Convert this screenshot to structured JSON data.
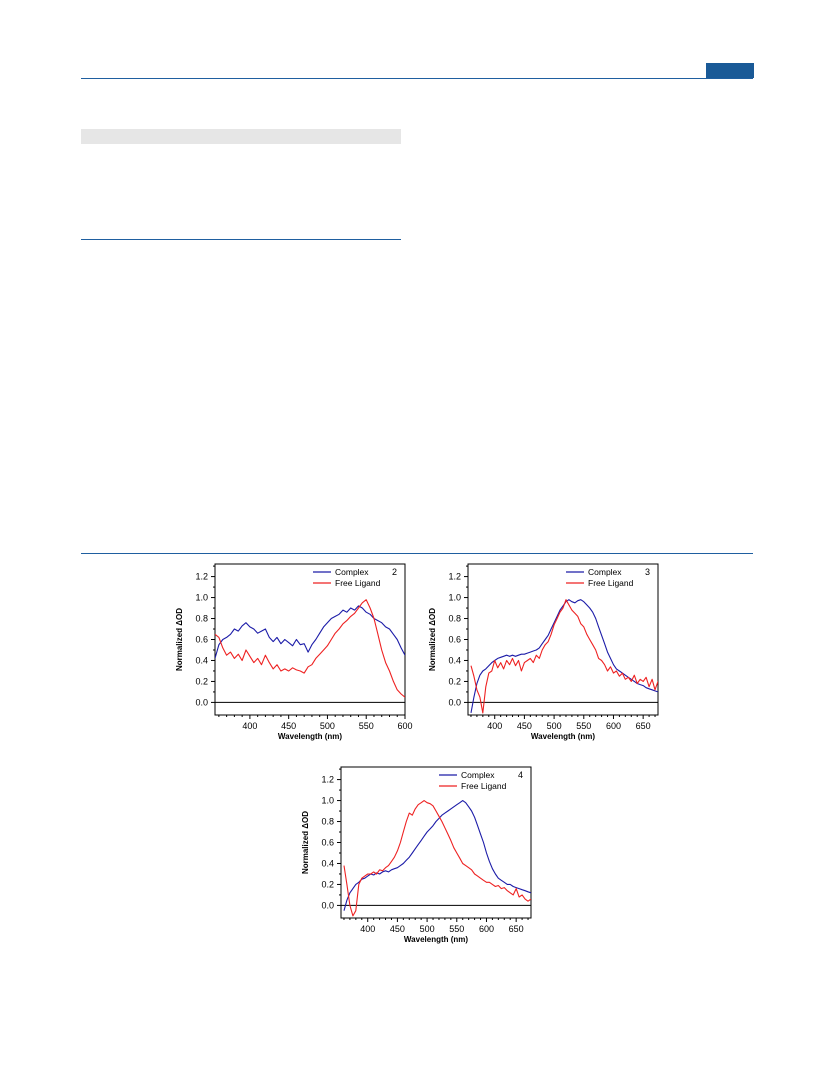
{
  "colors": {
    "header_rule": "#1f5fa0",
    "header_tab": "#1a5a97",
    "shaded_bar": "#e6e6e6",
    "complex": "#1c1ca8",
    "free_ligand": "#ee2222"
  },
  "chart_data": [
    {
      "type": "line",
      "panel_label": "2",
      "xlabel": "Wavelength (nm)",
      "ylabel": "Normalized ΔOD",
      "xlim": [
        355,
        600
      ],
      "ylim": [
        -0.12,
        1.32
      ],
      "xticks": [
        400,
        450,
        500,
        550,
        600
      ],
      "yticks": [
        0.0,
        0.2,
        0.4,
        0.6,
        0.8,
        1.0,
        1.2
      ],
      "zero_line": true,
      "legend_position": "top-right",
      "series": [
        {
          "name": "Complex",
          "color": "#1c1ca8",
          "x": [
            355,
            360,
            365,
            370,
            375,
            380,
            385,
            390,
            395,
            400,
            405,
            410,
            415,
            420,
            425,
            430,
            435,
            440,
            445,
            450,
            455,
            460,
            465,
            470,
            475,
            480,
            485,
            490,
            495,
            500,
            505,
            510,
            515,
            520,
            525,
            530,
            535,
            540,
            545,
            550,
            555,
            560,
            565,
            570,
            575,
            580,
            585,
            590,
            595,
            600
          ],
          "y": [
            0.42,
            0.55,
            0.6,
            0.62,
            0.65,
            0.7,
            0.68,
            0.73,
            0.76,
            0.72,
            0.7,
            0.66,
            0.68,
            0.7,
            0.62,
            0.58,
            0.62,
            0.56,
            0.6,
            0.57,
            0.54,
            0.6,
            0.55,
            0.56,
            0.48,
            0.55,
            0.6,
            0.66,
            0.72,
            0.76,
            0.8,
            0.82,
            0.84,
            0.88,
            0.86,
            0.9,
            0.88,
            0.92,
            0.9,
            0.86,
            0.84,
            0.8,
            0.78,
            0.76,
            0.72,
            0.7,
            0.65,
            0.6,
            0.52,
            0.45
          ]
        },
        {
          "name": "Free Ligand",
          "color": "#ee2222",
          "x": [
            355,
            360,
            365,
            370,
            375,
            380,
            385,
            390,
            395,
            400,
            405,
            410,
            415,
            420,
            425,
            430,
            435,
            440,
            445,
            450,
            455,
            460,
            465,
            470,
            475,
            480,
            485,
            490,
            495,
            500,
            505,
            510,
            515,
            520,
            525,
            530,
            535,
            540,
            545,
            550,
            555,
            560,
            565,
            570,
            575,
            580,
            585,
            590,
            595,
            600
          ],
          "y": [
            0.65,
            0.62,
            0.52,
            0.45,
            0.48,
            0.42,
            0.46,
            0.4,
            0.5,
            0.44,
            0.38,
            0.42,
            0.36,
            0.45,
            0.38,
            0.32,
            0.36,
            0.3,
            0.32,
            0.3,
            0.33,
            0.31,
            0.3,
            0.28,
            0.34,
            0.36,
            0.42,
            0.46,
            0.5,
            0.54,
            0.6,
            0.66,
            0.7,
            0.75,
            0.78,
            0.82,
            0.85,
            0.9,
            0.95,
            0.98,
            0.9,
            0.8,
            0.65,
            0.5,
            0.38,
            0.3,
            0.2,
            0.12,
            0.08,
            0.05
          ]
        }
      ]
    },
    {
      "type": "line",
      "panel_label": "3",
      "xlabel": "Wavelength (nm)",
      "ylabel": "Normalized ΔOD",
      "xlim": [
        355,
        675
      ],
      "ylim": [
        -0.12,
        1.32
      ],
      "xticks": [
        400,
        450,
        500,
        550,
        600,
        650
      ],
      "yticks": [
        0.0,
        0.2,
        0.4,
        0.6,
        0.8,
        1.0,
        1.2
      ],
      "zero_line": true,
      "legend_position": "top-right",
      "series": [
        {
          "name": "Complex",
          "color": "#1c1ca8",
          "x": [
            360,
            365,
            370,
            375,
            380,
            385,
            390,
            395,
            400,
            405,
            410,
            415,
            420,
            425,
            430,
            435,
            440,
            445,
            450,
            455,
            460,
            465,
            470,
            475,
            480,
            485,
            490,
            495,
            500,
            505,
            510,
            515,
            520,
            525,
            530,
            535,
            540,
            545,
            550,
            555,
            560,
            565,
            570,
            575,
            580,
            585,
            590,
            595,
            600,
            605,
            610,
            615,
            620,
            625,
            630,
            635,
            640,
            645,
            650,
            655,
            660,
            665,
            670,
            675
          ],
          "y": [
            -0.1,
            0.05,
            0.18,
            0.26,
            0.3,
            0.32,
            0.35,
            0.38,
            0.4,
            0.42,
            0.43,
            0.44,
            0.45,
            0.44,
            0.45,
            0.44,
            0.45,
            0.46,
            0.46,
            0.47,
            0.48,
            0.49,
            0.5,
            0.52,
            0.56,
            0.6,
            0.64,
            0.7,
            0.76,
            0.82,
            0.88,
            0.92,
            0.96,
            0.98,
            0.96,
            0.95,
            0.97,
            0.98,
            0.96,
            0.93,
            0.9,
            0.86,
            0.8,
            0.72,
            0.64,
            0.56,
            0.48,
            0.42,
            0.36,
            0.32,
            0.3,
            0.28,
            0.26,
            0.24,
            0.22,
            0.2,
            0.18,
            0.17,
            0.16,
            0.14,
            0.13,
            0.12,
            0.11,
            0.1
          ]
        },
        {
          "name": "Free Ligand",
          "color": "#ee2222",
          "x": [
            360,
            365,
            370,
            375,
            380,
            385,
            390,
            395,
            400,
            405,
            410,
            415,
            420,
            425,
            430,
            435,
            440,
            445,
            450,
            455,
            460,
            465,
            470,
            475,
            480,
            485,
            490,
            495,
            500,
            505,
            510,
            515,
            520,
            525,
            530,
            535,
            540,
            545,
            550,
            555,
            560,
            565,
            570,
            575,
            580,
            585,
            590,
            595,
            600,
            605,
            610,
            615,
            620,
            625,
            630,
            635,
            640,
            645,
            650,
            655,
            660,
            665,
            670,
            675
          ],
          "y": [
            0.35,
            0.25,
            0.12,
            0.05,
            -0.1,
            0.15,
            0.28,
            0.3,
            0.4,
            0.33,
            0.38,
            0.32,
            0.4,
            0.36,
            0.42,
            0.35,
            0.4,
            0.3,
            0.38,
            0.4,
            0.42,
            0.38,
            0.45,
            0.42,
            0.5,
            0.55,
            0.58,
            0.65,
            0.74,
            0.8,
            0.86,
            0.9,
            0.98,
            0.93,
            0.88,
            0.85,
            0.82,
            0.75,
            0.72,
            0.65,
            0.6,
            0.55,
            0.5,
            0.42,
            0.4,
            0.36,
            0.3,
            0.34,
            0.28,
            0.3,
            0.25,
            0.28,
            0.22,
            0.24,
            0.2,
            0.26,
            0.18,
            0.22,
            0.2,
            0.24,
            0.15,
            0.22,
            0.12,
            0.2
          ]
        }
      ]
    },
    {
      "type": "line",
      "panel_label": "4",
      "xlabel": "Wavelength (nm)",
      "ylabel": "Normalized ΔOD",
      "xlim": [
        355,
        675
      ],
      "ylim": [
        -0.12,
        1.32
      ],
      "xticks": [
        400,
        450,
        500,
        550,
        600,
        650
      ],
      "yticks": [
        0.0,
        0.2,
        0.4,
        0.6,
        0.8,
        1.0,
        1.2
      ],
      "zero_line": true,
      "legend_position": "top-right",
      "series": [
        {
          "name": "Complex",
          "color": "#1c1ca8",
          "x": [
            360,
            365,
            370,
            375,
            380,
            385,
            390,
            395,
            400,
            405,
            410,
            415,
            420,
            425,
            430,
            435,
            440,
            445,
            450,
            455,
            460,
            465,
            470,
            475,
            480,
            485,
            490,
            495,
            500,
            505,
            510,
            515,
            520,
            525,
            530,
            535,
            540,
            545,
            550,
            555,
            560,
            565,
            570,
            575,
            580,
            585,
            590,
            595,
            600,
            605,
            610,
            615,
            620,
            625,
            630,
            635,
            640,
            645,
            650,
            655,
            660,
            665,
            670,
            675
          ],
          "y": [
            -0.05,
            0.05,
            0.12,
            0.16,
            0.2,
            0.22,
            0.25,
            0.26,
            0.28,
            0.3,
            0.29,
            0.31,
            0.3,
            0.32,
            0.33,
            0.32,
            0.34,
            0.35,
            0.36,
            0.38,
            0.4,
            0.43,
            0.46,
            0.5,
            0.54,
            0.58,
            0.62,
            0.66,
            0.7,
            0.73,
            0.76,
            0.8,
            0.83,
            0.86,
            0.88,
            0.9,
            0.92,
            0.94,
            0.96,
            0.98,
            1.0,
            0.98,
            0.94,
            0.9,
            0.84,
            0.76,
            0.68,
            0.6,
            0.5,
            0.42,
            0.35,
            0.3,
            0.26,
            0.24,
            0.22,
            0.2,
            0.2,
            0.18,
            0.17,
            0.16,
            0.15,
            0.14,
            0.13,
            0.12
          ]
        },
        {
          "name": "Free Ligand",
          "color": "#ee2222",
          "x": [
            360,
            365,
            370,
            375,
            380,
            385,
            390,
            395,
            400,
            405,
            410,
            415,
            420,
            425,
            430,
            435,
            440,
            445,
            450,
            455,
            460,
            465,
            470,
            475,
            480,
            485,
            490,
            495,
            500,
            505,
            510,
            515,
            520,
            525,
            530,
            535,
            540,
            545,
            550,
            555,
            560,
            565,
            570,
            575,
            580,
            585,
            590,
            595,
            600,
            605,
            610,
            615,
            620,
            625,
            630,
            635,
            640,
            645,
            650,
            655,
            660,
            665,
            670,
            675
          ],
          "y": [
            0.38,
            0.2,
            0.0,
            -0.1,
            -0.05,
            0.2,
            0.26,
            0.28,
            0.3,
            0.3,
            0.32,
            0.3,
            0.34,
            0.33,
            0.36,
            0.38,
            0.42,
            0.46,
            0.52,
            0.6,
            0.7,
            0.8,
            0.88,
            0.86,
            0.92,
            0.96,
            0.98,
            1.0,
            0.98,
            0.97,
            0.95,
            0.9,
            0.85,
            0.8,
            0.74,
            0.68,
            0.62,
            0.55,
            0.5,
            0.45,
            0.4,
            0.38,
            0.36,
            0.34,
            0.3,
            0.28,
            0.26,
            0.24,
            0.22,
            0.22,
            0.2,
            0.18,
            0.19,
            0.16,
            0.17,
            0.14,
            0.12,
            0.1,
            0.16,
            0.08,
            0.1,
            0.06,
            0.04,
            0.06
          ]
        }
      ]
    }
  ]
}
